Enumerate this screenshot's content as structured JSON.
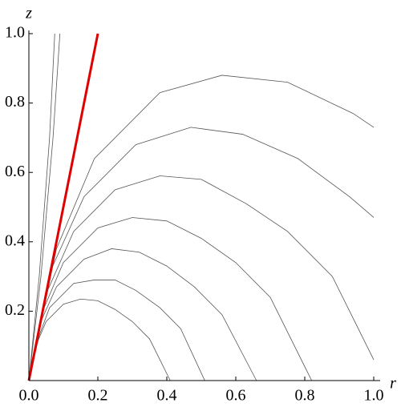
{
  "chart_data": {
    "type": "line",
    "x_label": "r",
    "y_label": "z",
    "xlim": [
      0,
      1
    ],
    "ylim": [
      0,
      1
    ],
    "xticks": [
      {
        "value": 0,
        "label": "0.0"
      },
      {
        "value": 0.2,
        "label": "0.2"
      },
      {
        "value": 0.4,
        "label": "0.4"
      },
      {
        "value": 0.6,
        "label": "0.6"
      },
      {
        "value": 0.8,
        "label": "0.8"
      },
      {
        "value": 1,
        "label": "1.0"
      }
    ],
    "yticks": [
      0.2,
      0.4,
      0.6,
      0.8,
      {
        "value": 1,
        "label": "1.0"
      }
    ],
    "series": [
      {
        "color": "#555555",
        "x": [
          0,
          0.02,
          0.05,
          0.1,
          0.15,
          0.2,
          0.25,
          0.3,
          0.35,
          0.41
        ],
        "values": [
          0,
          0.1,
          0.17,
          0.22,
          0.235,
          0.23,
          0.205,
          0.17,
          0.12,
          0
        ]
      },
      {
        "color": "#555555",
        "x": [
          0,
          0.03,
          0.06,
          0.13,
          0.19,
          0.25,
          0.31,
          0.38,
          0.44,
          0.51
        ],
        "values": [
          0,
          0.13,
          0.21,
          0.28,
          0.29,
          0.29,
          0.26,
          0.21,
          0.15,
          0
        ]
      },
      {
        "color": "#555555",
        "x": [
          0,
          0.03,
          0.08,
          0.16,
          0.24,
          0.32,
          0.4,
          0.48,
          0.56,
          0.66
        ],
        "values": [
          0,
          0.16,
          0.27,
          0.35,
          0.38,
          0.37,
          0.33,
          0.27,
          0.19,
          0
        ]
      },
      {
        "color": "#555555",
        "x": [
          0,
          0.04,
          0.1,
          0.2,
          0.3,
          0.4,
          0.5,
          0.6,
          0.7,
          0.82
        ],
        "values": [
          0,
          0.2,
          0.34,
          0.44,
          0.47,
          0.46,
          0.41,
          0.34,
          0.24,
          0
        ]
      },
      {
        "color": "#555555",
        "x": [
          0,
          0.05,
          0.13,
          0.25,
          0.38,
          0.5,
          0.63,
          0.75,
          0.88,
          1.0
        ],
        "values": [
          0,
          0.25,
          0.43,
          0.55,
          0.59,
          0.58,
          0.51,
          0.43,
          0.3,
          0.06
        ]
      },
      {
        "color": "#555555",
        "x": [
          0,
          0.06,
          0.16,
          0.31,
          0.47,
          0.62,
          0.78,
          0.93,
          1.0
        ],
        "values": [
          0,
          0.31,
          0.53,
          0.68,
          0.73,
          0.71,
          0.64,
          0.53,
          0.47
        ]
      },
      {
        "color": "#555555",
        "x": [
          0,
          0.08,
          0.19,
          0.38,
          0.56,
          0.75,
          0.94,
          1.0
        ],
        "values": [
          0,
          0.38,
          0.64,
          0.83,
          0.88,
          0.86,
          0.77,
          0.73
        ]
      },
      {
        "color": "#555555",
        "x": [
          0,
          0.03,
          0.06,
          0.075
        ],
        "values": [
          0,
          0.3,
          0.7,
          1.0
        ]
      },
      {
        "color": "#555555",
        "x": [
          0,
          0.035,
          0.07,
          0.09
        ],
        "values": [
          0,
          0.3,
          0.7,
          1.0
        ]
      },
      {
        "color": "#e00000",
        "x": [
          0,
          0.2
        ],
        "values": [
          0,
          1.0
        ]
      }
    ]
  }
}
